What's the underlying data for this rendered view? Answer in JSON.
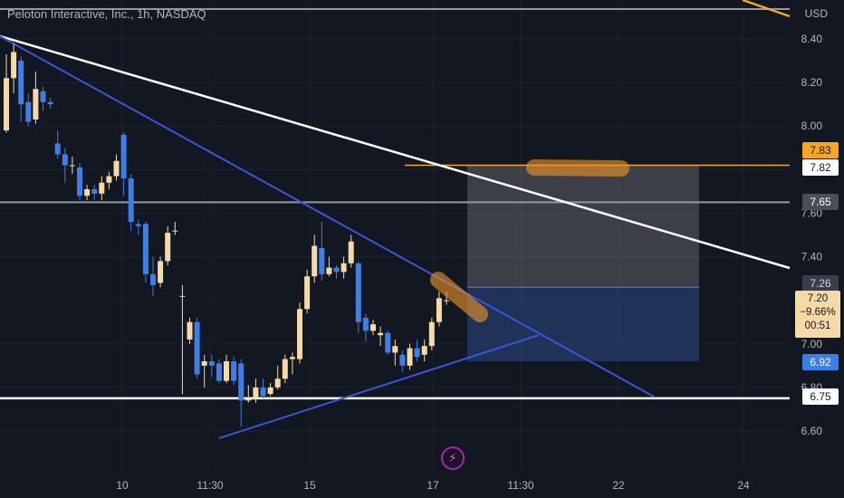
{
  "title": "Peloton Interactive, Inc., 1h, NASDAQ",
  "currency": "USD",
  "chart_data": {
    "type": "candlestick",
    "title": "Peloton Interactive, Inc., 1h, NASDAQ",
    "y_range": [
      6.52,
      8.52
    ],
    "y_ticks": [
      6.6,
      6.8,
      7.0,
      7.2,
      7.4,
      7.6,
      7.8,
      8.0,
      8.2,
      8.4
    ],
    "x_tick_labels": [
      "10",
      "11:30",
      "15",
      "17",
      "11:30",
      "22",
      "24"
    ],
    "grid": true,
    "candles": [
      [
        7.98,
        8.22,
        8.33,
        7.97
      ],
      [
        8.22,
        8.34,
        8.38,
        8.15
      ],
      [
        8.3,
        8.1,
        8.32,
        8.02
      ],
      [
        8.11,
        8.02,
        8.15,
        8.0
      ],
      [
        8.03,
        8.17,
        8.25,
        8.01
      ],
      [
        8.16,
        8.11,
        8.18,
        8.07
      ],
      [
        8.11,
        8.1,
        8.13,
        8.08
      ],
      [
        7.92,
        7.87,
        7.98,
        7.85
      ],
      [
        7.87,
        7.82,
        7.9,
        7.74
      ],
      [
        7.82,
        7.82,
        7.86,
        7.78
      ],
      [
        7.81,
        7.68,
        7.83,
        7.66
      ],
      [
        7.68,
        7.71,
        7.73,
        7.66
      ],
      [
        7.71,
        7.69,
        7.73,
        7.66
      ],
      [
        7.69,
        7.74,
        7.77,
        7.66
      ],
      [
        7.74,
        7.77,
        7.79,
        7.71
      ],
      [
        7.77,
        7.84,
        7.87,
        7.75
      ],
      [
        7.96,
        7.76,
        7.97,
        7.68
      ],
      [
        7.76,
        7.56,
        7.78,
        7.52
      ],
      [
        7.55,
        7.54,
        7.57,
        7.5
      ],
      [
        7.55,
        7.32,
        7.56,
        7.28
      ],
      [
        7.32,
        7.27,
        7.4,
        7.22
      ],
      [
        7.28,
        7.38,
        7.4,
        7.26
      ],
      [
        7.38,
        7.51,
        7.54,
        7.36
      ],
      [
        7.52,
        7.52,
        7.56,
        7.5
      ],
      [
        7.22,
        7.22,
        7.27,
        6.77
      ],
      [
        7.02,
        7.1,
        7.12,
        7.0
      ],
      [
        7.1,
        6.86,
        7.12,
        6.84
      ],
      [
        6.9,
        6.92,
        6.95,
        6.8
      ],
      [
        6.92,
        6.9,
        6.95,
        6.85
      ],
      [
        6.91,
        6.83,
        6.93,
        6.82
      ],
      [
        6.83,
        6.92,
        6.95,
        6.82
      ],
      [
        6.92,
        6.83,
        6.94,
        6.81
      ],
      [
        6.91,
        6.74,
        6.93,
        6.62
      ],
      [
        6.74,
        6.75,
        6.81,
        6.73
      ],
      [
        6.75,
        6.8,
        6.84,
        6.73
      ],
      [
        6.8,
        6.76,
        6.84,
        6.75
      ],
      [
        6.77,
        6.8,
        6.82,
        6.76
      ],
      [
        6.8,
        6.84,
        6.9,
        6.79
      ],
      [
        6.84,
        6.93,
        6.95,
        6.82
      ],
      [
        6.93,
        6.94,
        6.96,
        6.86
      ],
      [
        6.93,
        7.16,
        7.19,
        6.91
      ],
      [
        7.16,
        7.31,
        7.34,
        7.14
      ],
      [
        7.31,
        7.45,
        7.5,
        7.28
      ],
      [
        7.44,
        7.32,
        7.56,
        7.29
      ],
      [
        7.32,
        7.35,
        7.4,
        7.31
      ],
      [
        7.35,
        7.33,
        7.36,
        7.3
      ],
      [
        7.33,
        7.37,
        7.4,
        7.3
      ],
      [
        7.37,
        7.47,
        7.5,
        7.35
      ],
      [
        7.37,
        7.1,
        7.38,
        7.05
      ],
      [
        7.12,
        7.06,
        7.14,
        7.01
      ],
      [
        7.06,
        7.09,
        7.11,
        7.04
      ],
      [
        7.04,
        7.05,
        7.08,
        6.99
      ],
      [
        7.05,
        6.96,
        7.06,
        6.95
      ],
      [
        6.96,
        6.99,
        7.02,
        6.9
      ],
      [
        6.95,
        6.9,
        6.97,
        6.87
      ],
      [
        6.9,
        6.98,
        7.0,
        6.88
      ],
      [
        6.98,
        6.94,
        7.02,
        6.92
      ],
      [
        6.95,
        6.99,
        7.02,
        6.92
      ],
      [
        6.99,
        7.1,
        7.12,
        6.97
      ],
      [
        7.1,
        7.21,
        7.24,
        7.08
      ],
      [
        7.2,
        7.2,
        7.24,
        7.18
      ]
    ],
    "horizontal_levels": [
      7.83,
      7.82,
      7.65,
      6.75
    ],
    "price_labels": [
      "7.83",
      "7.82",
      "7.65",
      "7.26",
      "6.92",
      "6.75"
    ],
    "current": {
      "price": "7.20",
      "change": "−9.66%",
      "countdown": "00:51"
    },
    "axis_labels": [
      "8.40",
      "8.20",
      "8.00",
      "7.60",
      "7.40",
      "7.00",
      "6.80",
      "6.60"
    ],
    "colors": {
      "up": "#f5d9a6",
      "down": "#3d7fe6",
      "trend": "#3956d6",
      "resistance": "#ffffff",
      "level_orange": "#f5a623",
      "level_gray": "#9598a1"
    }
  }
}
